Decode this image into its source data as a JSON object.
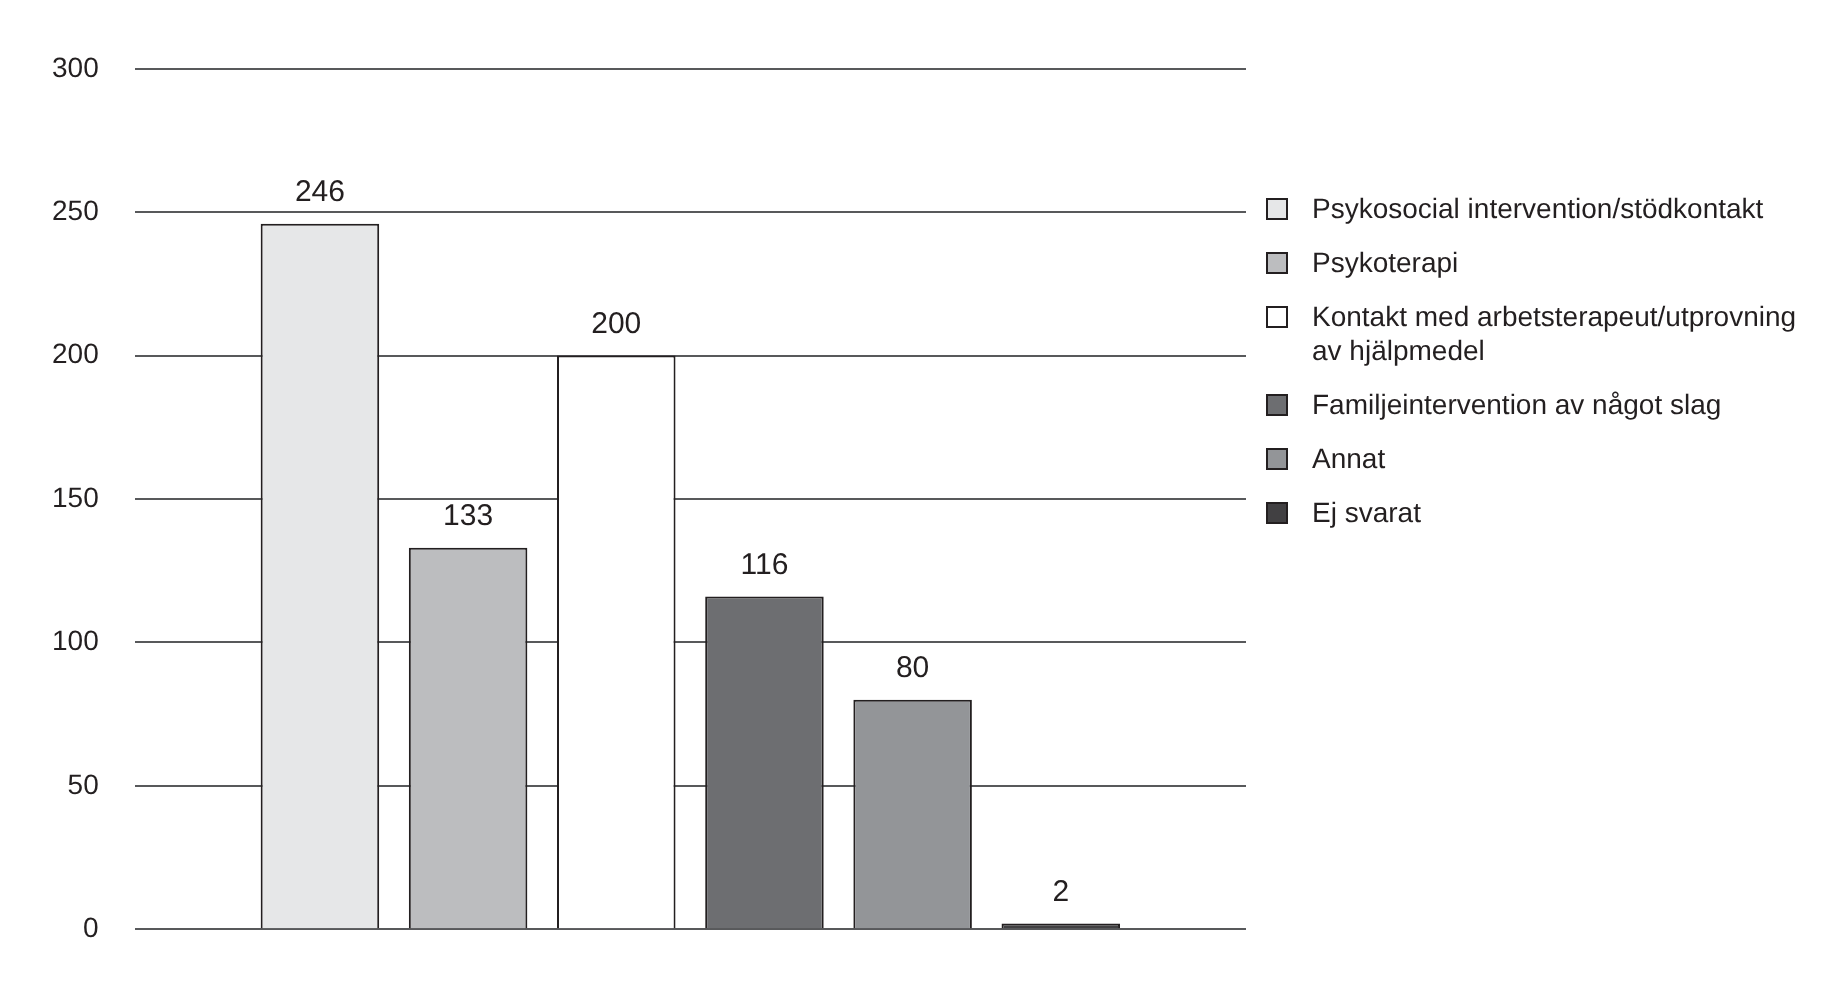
{
  "chart_data": {
    "type": "bar",
    "categories": [
      null
    ],
    "series": [
      {
        "name": "Psykosocial intervention/stödkontakt",
        "color": "#e6e7e8",
        "values": [
          246
        ]
      },
      {
        "name": "Psykoterapi",
        "color": "#bcbdbf",
        "values": [
          133
        ]
      },
      {
        "name": "Kontakt med arbetsterapeut/utprovning av hjälpmedel",
        "color": "#ffffff",
        "values": [
          200
        ]
      },
      {
        "name": "Familjeintervention av något slag",
        "color": "#6d6e71",
        "values": [
          116
        ]
      },
      {
        "name": "Annat",
        "color": "#939598",
        "values": [
          80
        ]
      },
      {
        "name": "Ej svarat",
        "color": "#414042",
        "values": [
          2
        ]
      }
    ],
    "ylim": [
      0,
      300
    ],
    "yticks": [
      0,
      50,
      100,
      150,
      200,
      250,
      300
    ],
    "grid": "y",
    "legend": "right",
    "data_labels": true
  }
}
